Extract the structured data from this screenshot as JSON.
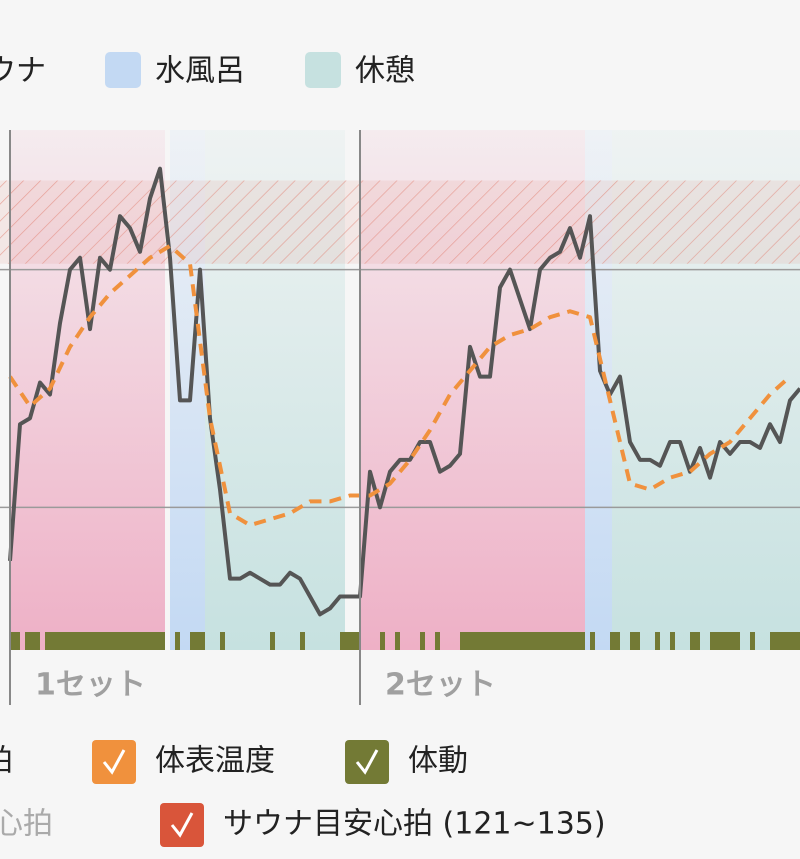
{
  "chart_data": {
    "type": "line",
    "legend": [
      {
        "label": "サウナ",
        "color": "#eeb0c6"
      },
      {
        "label": "水風呂",
        "color": "#c3d9f3"
      },
      {
        "label": "休憩",
        "color": "#c6e1e0"
      }
    ],
    "xlim": [
      0,
      79
    ],
    "ylim": [
      56,
      143.5
    ],
    "grid_values": [
      80,
      120
    ],
    "target_range": [
      121,
      135
    ],
    "target_color": "#e07a6a",
    "phases": [
      {
        "start": 0,
        "end": 15.5,
        "color": "#eeb0c6"
      },
      {
        "start": 16,
        "end": 19.5,
        "color": "#c3d9f3"
      },
      {
        "start": 19.5,
        "end": 33.5,
        "color": "#c6e1e0"
      },
      {
        "start": 35,
        "end": 57.5,
        "color": "#eeb0c6"
      },
      {
        "start": 57.5,
        "end": 60.2,
        "color": "#c3d9f3"
      },
      {
        "start": 60.2,
        "end": 79,
        "color": "#c6e1e0"
      }
    ],
    "sets": [
      {
        "label": "1セット",
        "x": 0
      },
      {
        "label": "2セット",
        "x": 35
      }
    ],
    "series": [
      {
        "name": "心拍",
        "color": "#555555",
        "x": [
          0,
          1,
          2,
          3,
          4,
          5,
          6,
          7,
          8,
          9,
          10,
          11,
          12,
          13,
          14,
          15,
          16,
          17,
          18,
          19,
          20,
          21,
          22,
          23,
          24,
          25,
          26,
          27,
          28,
          29,
          30,
          31,
          32,
          33,
          34,
          35,
          36,
          37,
          38,
          39,
          40,
          41,
          42,
          43,
          44,
          45,
          46,
          47,
          48,
          49,
          50,
          51,
          52,
          53,
          54,
          55,
          56,
          57,
          58,
          59,
          60,
          61,
          62,
          63,
          64,
          65,
          66,
          67,
          68,
          69,
          70,
          71,
          72,
          73,
          74,
          75,
          76,
          77,
          78,
          79
        ],
        "values": [
          71,
          94,
          95,
          101,
          99,
          111,
          120,
          122,
          110,
          122,
          120,
          129,
          127,
          123,
          132,
          137,
          122,
          98,
          98,
          120,
          95,
          83,
          68,
          68,
          69,
          68,
          67,
          67,
          69,
          68,
          65,
          62,
          63,
          65,
          65,
          65,
          86,
          80,
          86,
          88,
          88,
          91,
          91,
          86,
          87,
          89,
          107,
          102,
          102,
          117,
          120,
          115,
          110,
          120,
          122,
          123,
          127,
          122,
          129,
          103,
          99,
          102,
          91,
          88,
          88,
          87,
          91,
          91,
          86,
          90,
          85,
          91,
          89,
          91,
          91,
          90,
          94,
          91,
          98,
          100
        ]
      },
      {
        "name": "体表温度",
        "color": "#f0913d",
        "x": [
          0,
          2,
          4,
          6,
          8,
          10,
          12,
          14,
          16,
          18,
          20,
          22,
          24,
          26,
          28,
          30,
          32,
          34,
          36,
          38,
          40,
          42,
          44,
          46,
          48,
          50,
          52,
          54,
          56,
          58,
          60,
          62,
          64,
          66,
          68,
          70,
          72,
          74,
          76,
          78
        ],
        "values": [
          102,
          97,
          100,
          107,
          112,
          116,
          119,
          122,
          124,
          121,
          95,
          79,
          77,
          78,
          79,
          81,
          81,
          82,
          82,
          84,
          88,
          93,
          99,
          103,
          107,
          109,
          110,
          112,
          113,
          112,
          98,
          84,
          83,
          85,
          86,
          89,
          91,
          95,
          99,
          102
        ]
      }
    ],
    "movement_color": "#737a35",
    "movement": [
      [
        0,
        1
      ],
      [
        1.5,
        3
      ],
      [
        3.5,
        15.5
      ],
      [
        16.5,
        17
      ],
      [
        18,
        19.5
      ],
      [
        21,
        21.5
      ],
      [
        26,
        26.5
      ],
      [
        29,
        29.5
      ],
      [
        33,
        35
      ],
      [
        37,
        37.5
      ],
      [
        38.5,
        39
      ],
      [
        41,
        41.5
      ],
      [
        42.5,
        43
      ],
      [
        45,
        57.5
      ],
      [
        58,
        58.5
      ],
      [
        60,
        61
      ],
      [
        62,
        63
      ],
      [
        64.5,
        65
      ],
      [
        66,
        66.5
      ],
      [
        68,
        69
      ],
      [
        70,
        73
      ],
      [
        74,
        74.5
      ],
      [
        76,
        79
      ]
    ],
    "toggles": [
      {
        "label": "心拍",
        "checked": true,
        "color": "#555555"
      },
      {
        "label": "体表温度",
        "checked": true,
        "color": "#f0913d"
      },
      {
        "label": "体動",
        "checked": true,
        "color": "#737a35"
      },
      {
        "label": "安静心拍",
        "checked": false,
        "color": "#aaaaaa"
      },
      {
        "label": "サウナ目安心拍 (121~135)",
        "checked": true,
        "color": "#d9553a"
      }
    ]
  }
}
